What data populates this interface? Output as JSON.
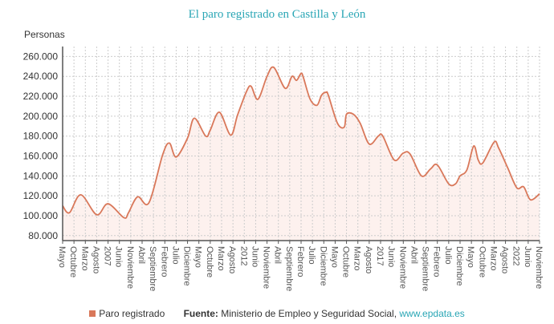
{
  "chart_data": {
    "type": "area",
    "title": "El paro registrado en Castilla y León",
    "ylabel": "Personas",
    "xlabel": "",
    "ylim": [
      75000,
      270000
    ],
    "yticks": [
      80000,
      100000,
      120000,
      140000,
      160000,
      180000,
      200000,
      220000,
      240000,
      260000
    ],
    "ytick_labels": [
      "80.000",
      "100.000",
      "120.000",
      "140.000",
      "160.000",
      "180.000",
      "200.000",
      "220.000",
      "240.000",
      "260.000"
    ],
    "xlim": [
      "2005-05",
      "2022-11"
    ],
    "xtick_labels": [
      "Mayo",
      "Octubre",
      "Marzo",
      "Agosto",
      "2007",
      "Junio",
      "Noviembre",
      "Abril",
      "Septiembre",
      "Febrero",
      "Julio",
      "Diciembre",
      "Mayo",
      "Octubre",
      "Marzo",
      "Agosto",
      "2012",
      "Junio",
      "Noviembre",
      "Abril",
      "Septiembre",
      "Febrero",
      "Julio",
      "Diciembre",
      "Mayo",
      "Octubre",
      "Marzo",
      "Agosto",
      "2017",
      "Junio",
      "Noviembre",
      "Abril",
      "Septiembre",
      "Febrero",
      "Julio",
      "Diciembre",
      "Mayo",
      "Octubre",
      "Marzo",
      "Agosto",
      "2022",
      "Junio",
      "Noviembre"
    ],
    "grid": true,
    "legend_placement": "bottom",
    "series": [
      {
        "name": "Paro registrado",
        "color": "#d9785a",
        "fill": "#fdeeea",
        "x": [
          "2005-05",
          "2005-08",
          "2006-01",
          "2006-08",
          "2007-01",
          "2007-08",
          "2007-10",
          "2008-02",
          "2008-07",
          "2009-01",
          "2009-04",
          "2009-07",
          "2009-12",
          "2010-03",
          "2010-08",
          "2010-10",
          "2011-02",
          "2011-07",
          "2011-10",
          "2012-02",
          "2012-04",
          "2012-07",
          "2012-11",
          "2013-02",
          "2013-07",
          "2013-10",
          "2013-12",
          "2014-02",
          "2014-03",
          "2014-06",
          "2014-09",
          "2014-11",
          "2015-01",
          "2015-02",
          "2015-06",
          "2015-09",
          "2015-10",
          "2016-01",
          "2016-04",
          "2016-08",
          "2016-12",
          "2017-02",
          "2017-07",
          "2017-11",
          "2018-02",
          "2018-07",
          "2018-11",
          "2019-02",
          "2019-07",
          "2019-10",
          "2019-12",
          "2020-03",
          "2020-06",
          "2020-08",
          "2020-10",
          "2021-03",
          "2021-05",
          "2021-09",
          "2022-01",
          "2022-04",
          "2022-07",
          "2022-11"
        ],
        "values": [
          110000,
          103000,
          121000,
          101000,
          112000,
          98000,
          103000,
          119000,
          113000,
          161000,
          173000,
          159000,
          178000,
          198000,
          180000,
          186000,
          204000,
          181000,
          201000,
          225000,
          230000,
          217000,
          240000,
          249000,
          228000,
          240000,
          236000,
          243000,
          239000,
          217000,
          211000,
          221000,
          224000,
          221000,
          193000,
          189000,
          202000,
          202000,
          193000,
          172000,
          180000,
          180000,
          156000,
          163000,
          162000,
          140000,
          147000,
          151000,
          132000,
          132000,
          140000,
          146000,
          170000,
          156000,
          153000,
          174000,
          168000,
          148000,
          128000,
          129000,
          116000,
          122000
        ]
      }
    ]
  },
  "legend": {
    "series_label": "Paro registrado",
    "source_label": "Fuente:",
    "source_text": " Ministerio de Empleo y Seguridad Social, ",
    "source_link": "www.epdata.es"
  }
}
